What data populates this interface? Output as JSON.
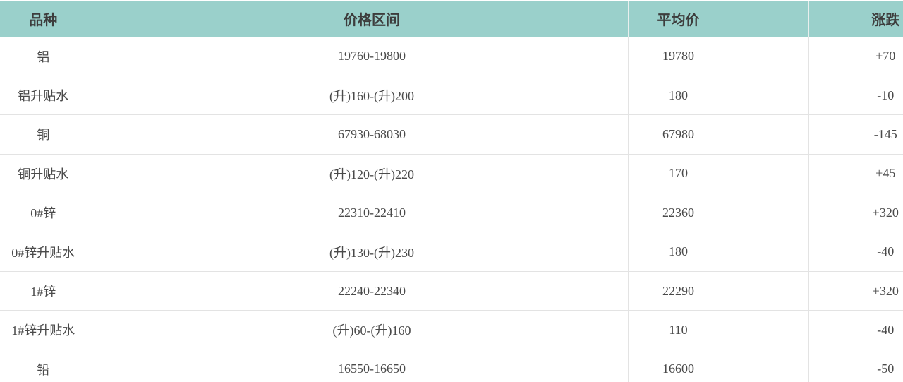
{
  "chart_data": {
    "type": "table",
    "title": "",
    "columns": [
      "品种",
      "价格区间",
      "平均价",
      "涨跌"
    ],
    "rows": [
      [
        "铝",
        "19760-19800",
        "19780",
        "+70"
      ],
      [
        "铝升贴水",
        "(升)160-(升)200",
        "180",
        "-10"
      ],
      [
        "铜",
        "67930-68030",
        "67980",
        "-145"
      ],
      [
        "铜升贴水",
        "(升)120-(升)220",
        "170",
        "+45"
      ],
      [
        "0#锌",
        "22310-22410",
        "22360",
        "+320"
      ],
      [
        "0#锌升贴水",
        "(升)130-(升)230",
        "180",
        "-40"
      ],
      [
        "1#锌",
        "22240-22340",
        "22290",
        "+320"
      ],
      [
        "1#锌升贴水",
        "(升)60-(升)160",
        "110",
        "-40"
      ],
      [
        "铅",
        "16550-16650",
        "16600",
        "-50"
      ]
    ]
  },
  "colors": {
    "header_bg": "#9ad0cb",
    "header_text": "#3d3d3d",
    "body_text": "#4a4a4a",
    "border": "#e3e3e3",
    "row_bg": "#ffffff"
  }
}
